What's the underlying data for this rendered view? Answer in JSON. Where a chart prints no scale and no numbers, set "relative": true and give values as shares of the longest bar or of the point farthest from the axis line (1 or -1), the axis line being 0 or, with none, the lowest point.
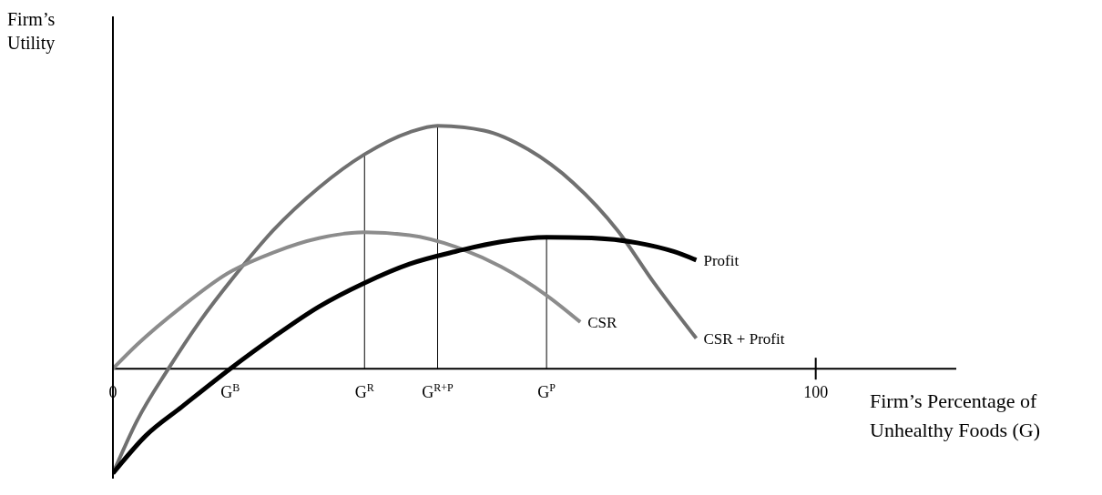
{
  "chart_data": {
    "type": "line",
    "relative": true,
    "ylabel": "Firm’s Utility",
    "xlabel": "Firm’s Percentage of Unhealthy Foods (G)",
    "xlim": [
      0,
      120
    ],
    "xticks": [
      0,
      {
        "value": 16.7,
        "label": "G$^{B}$"
      },
      {
        "value": 35.8,
        "label": "G$^{R}$"
      },
      {
        "value": 46.2,
        "label": "G$^{R+P}$"
      },
      {
        "value": 61.7,
        "label": "G$^{P}$"
      },
      100
    ],
    "marker": "none",
    "line_style": "solid",
    "series": [
      {
        "name": "CSR + Profit",
        "color": "#707070",
        "x": [
          0,
          3.4,
          7.9,
          12.4,
          17.6,
          22.8,
          29.3,
          35.8,
          42.2,
          46.2,
          52.8,
          59.1,
          65.5,
          71.8,
          77.0,
          83.0
        ],
        "values": [
          -0.431,
          -0.216,
          0,
          0.196,
          0.392,
          0.569,
          0.745,
          0.882,
          0.973,
          1,
          0.98,
          0.902,
          0.765,
          0.569,
          0.353,
          0.125
        ]
      },
      {
        "name": "CSR",
        "color": "#8c8c8c",
        "x": [
          0,
          3.4,
          9.8,
          16.3,
          22.8,
          29.3,
          35.8,
          42.2,
          48.7,
          55.2,
          61.7,
          66.5
        ],
        "values": [
          0,
          0.098,
          0.255,
          0.392,
          0.478,
          0.537,
          0.561,
          0.549,
          0.502,
          0.42,
          0.302,
          0.192
        ]
      },
      {
        "name": "Profit",
        "color": "#000000",
        "x": [
          0,
          4.7,
          9.8,
          16.7,
          22.8,
          29.3,
          35.8,
          42.2,
          48.7,
          55.2,
          61.7,
          68.1,
          74.6,
          79.8,
          83.0
        ],
        "values": [
          -0.431,
          -0.275,
          -0.157,
          0,
          0.129,
          0.255,
          0.353,
          0.431,
          0.482,
          0.522,
          0.541,
          0.538,
          0.518,
          0.482,
          0.447
        ]
      }
    ],
    "ref_lines": [
      {
        "axis": "x",
        "value": 35.8,
        "color": "#000000"
      },
      {
        "axis": "x",
        "value": 46.2,
        "color": "#000000"
      },
      {
        "axis": "x",
        "value": 61.7,
        "color": "#000000"
      }
    ]
  }
}
